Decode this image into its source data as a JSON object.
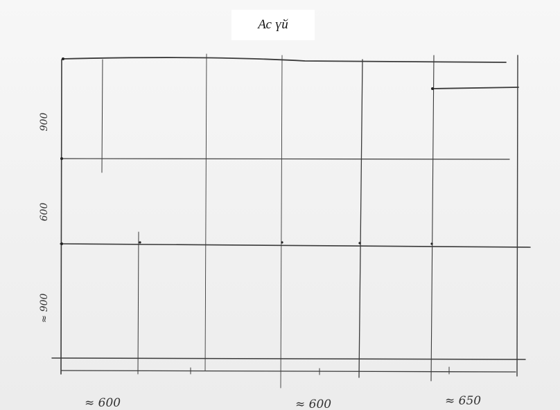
{
  "title": "Ас үй",
  "dimensions": {
    "heights": [
      "900",
      "600",
      "≈ 900"
    ],
    "widths": [
      "≈ 600",
      "≈ 600",
      "≈ 650"
    ]
  },
  "colors": {
    "paper": "#f1f1f1",
    "pencil": "#333333",
    "ink": "#111111"
  }
}
